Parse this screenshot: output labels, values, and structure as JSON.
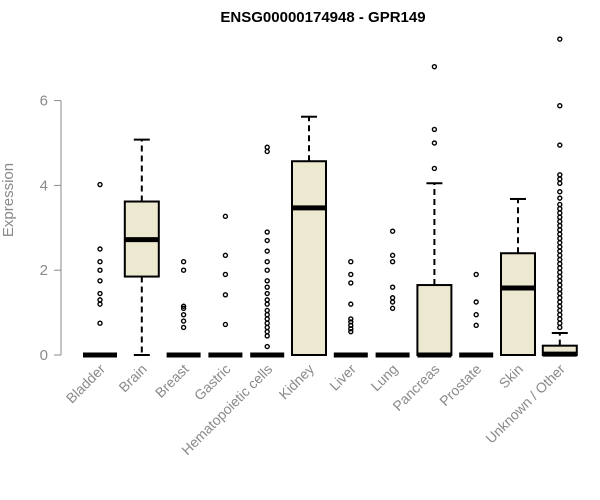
{
  "chart_data": {
    "type": "box",
    "title": "ENSG00000174948 - GPR149",
    "ylabel": "Expression",
    "xlabel": "",
    "ylim": [
      0,
      7.5
    ],
    "yticks": [
      0,
      2,
      4,
      6
    ],
    "box_fill": "#ede8d0",
    "stroke": "#000000",
    "categories": [
      "Bladder",
      "Brain",
      "Breast",
      "Gastric",
      "Hematopoietic cells",
      "Kidney",
      "Liver",
      "Lung",
      "Pancreas",
      "Prostate",
      "Skin",
      "Unknown / Other"
    ],
    "boxes": [
      {
        "q1": 0,
        "median": 0,
        "q3": 0,
        "whisker_low": 0,
        "whisker_high": 0,
        "outliers": [
          0.75,
          1.2,
          1.3,
          1.45,
          1.75,
          2.0,
          2.2,
          2.5,
          4.02
        ]
      },
      {
        "q1": 1.85,
        "median": 2.72,
        "q3": 3.62,
        "whisker_low": 0,
        "whisker_high": 5.08,
        "outliers": []
      },
      {
        "q1": 0,
        "median": 0,
        "q3": 0,
        "whisker_low": 0,
        "whisker_high": 0,
        "outliers": [
          0.65,
          0.8,
          0.95,
          1.1,
          1.15,
          2.0,
          2.2
        ]
      },
      {
        "q1": 0,
        "median": 0,
        "q3": 0,
        "whisker_low": 0,
        "whisker_high": 0,
        "outliers": [
          0.72,
          1.42,
          1.9,
          2.35,
          3.27
        ]
      },
      {
        "q1": 0,
        "median": 0,
        "q3": 0,
        "whisker_low": 0,
        "whisker_high": 0,
        "outliers": [
          0.2,
          0.45,
          0.55,
          0.65,
          0.75,
          0.85,
          0.95,
          1.05,
          1.2,
          1.3,
          1.45,
          1.6,
          1.75,
          2.0,
          2.2,
          2.45,
          2.7,
          2.9,
          4.8,
          4.9
        ]
      },
      {
        "q1": 0,
        "median": 3.47,
        "q3": 4.57,
        "whisker_low": 0,
        "whisker_high": 5.62,
        "outliers": []
      },
      {
        "q1": 0,
        "median": 0,
        "q3": 0,
        "whisker_low": 0,
        "whisker_high": 0,
        "outliers": [
          0.55,
          0.62,
          0.7,
          0.78,
          0.85,
          1.2,
          1.7,
          1.9,
          2.2
        ]
      },
      {
        "q1": 0,
        "median": 0,
        "q3": 0,
        "whisker_low": 0,
        "whisker_high": 0,
        "outliers": [
          1.1,
          1.25,
          1.35,
          1.6,
          2.2,
          2.35,
          2.92
        ]
      },
      {
        "q1": 0,
        "median": 0,
        "q3": 1.65,
        "whisker_low": 0,
        "whisker_high": 4.05,
        "outliers": [
          4.4,
          5.0,
          5.32,
          6.8
        ]
      },
      {
        "q1": 0,
        "median": 0,
        "q3": 0,
        "whisker_low": 0,
        "whisker_high": 0,
        "outliers": [
          0.7,
          0.95,
          1.25,
          1.9
        ]
      },
      {
        "q1": 0,
        "median": 1.58,
        "q3": 2.4,
        "whisker_low": 0,
        "whisker_high": 3.68,
        "outliers": []
      },
      {
        "q1": 0,
        "median": 0.02,
        "q3": 0.22,
        "whisker_low": 0,
        "whisker_high": 0.52,
        "outliers": [
          0.65,
          0.75,
          0.85,
          0.95,
          1.05,
          1.15,
          1.25,
          1.35,
          1.45,
          1.55,
          1.65,
          1.75,
          1.85,
          1.95,
          2.05,
          2.15,
          2.25,
          2.35,
          2.45,
          2.55,
          2.65,
          2.75,
          2.85,
          2.95,
          3.05,
          3.15,
          3.25,
          3.35,
          3.45,
          3.55,
          3.7,
          3.85,
          4.05,
          4.15,
          4.25,
          4.95,
          5.88,
          7.45
        ]
      }
    ]
  }
}
